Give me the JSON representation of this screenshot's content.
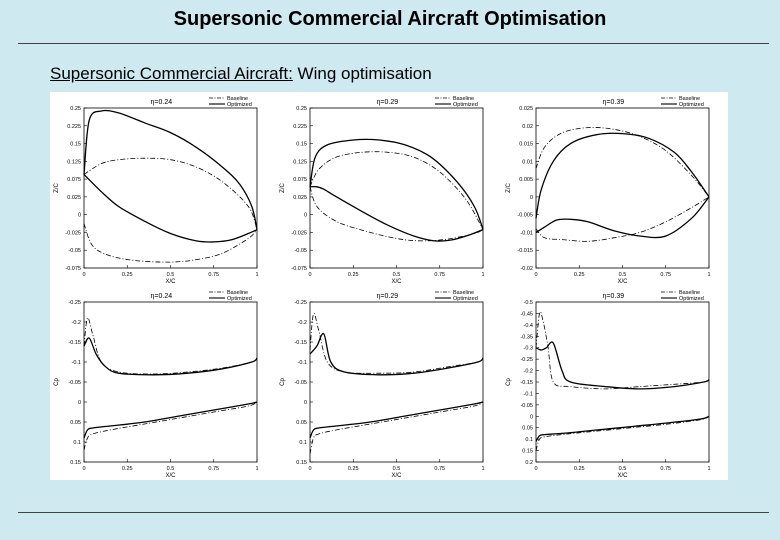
{
  "slide": {
    "title": "Supersonic Commercial Aircraft Optimisation",
    "subtitle_prefix": "Supersonic Commercial Aircraft:",
    "subtitle_suffix": " Wing optimisation"
  },
  "legend": {
    "baseline": "Baseline",
    "optimized": "Optimized"
  },
  "chart_data": [
    {
      "type": "line",
      "title": "η=0.24",
      "xlabel": "X/C",
      "ylabel": "Z/C",
      "xlim": [
        0,
        1
      ],
      "ylim": [
        -0.075,
        0.25
      ],
      "xticks": [
        "0",
        "0.25",
        "0.5",
        "0.75",
        "1"
      ],
      "yticks": [
        "0.25",
        "0.225",
        "0.15",
        "0.125",
        "0.075",
        "0.025",
        "0",
        "-0.025",
        "-0.05",
        "-0.075"
      ],
      "series": [
        {
          "name": "Baseline",
          "style": "dashdot",
          "x": [
            0,
            0.1,
            0.2,
            0.35,
            0.5,
            0.65,
            0.8,
            0.95,
            1
          ],
          "y": [
            0.115,
            0.137,
            0.145,
            0.148,
            0.145,
            0.13,
            0.1,
            0.05,
            0.003
          ]
        },
        {
          "name": "Baseline",
          "style": "dashdot",
          "x": [
            0,
            0.05,
            0.15,
            0.3,
            0.5,
            0.65,
            0.8,
            0.95,
            1
          ],
          "y": [
            0.015,
            -0.03,
            -0.05,
            -0.06,
            -0.063,
            -0.058,
            -0.045,
            -0.015,
            0.003
          ]
        },
        {
          "name": "Optimized",
          "style": "solid",
          "x": [
            0,
            0.03,
            0.1,
            0.2,
            0.35,
            0.5,
            0.65,
            0.8,
            0.9,
            0.97,
            1
          ],
          "y": [
            0.115,
            0.225,
            0.244,
            0.24,
            0.22,
            0.2,
            0.17,
            0.13,
            0.095,
            0.05,
            0.003
          ]
        },
        {
          "name": "Optimized",
          "style": "solid",
          "x": [
            0,
            0.1,
            0.2,
            0.35,
            0.5,
            0.65,
            0.75,
            0.85,
            0.95,
            1
          ],
          "y": [
            0.115,
            0.08,
            0.05,
            0.02,
            -0.005,
            -0.02,
            -0.022,
            -0.018,
            -0.005,
            0.003
          ]
        }
      ]
    },
    {
      "type": "line",
      "title": "η=0.29",
      "xlabel": "X/C",
      "ylabel": "Z/C",
      "xlim": [
        0,
        1
      ],
      "ylim": [
        -0.075,
        0.25
      ],
      "xticks": [
        "0",
        "0.25",
        "0.5",
        "0.75",
        "1"
      ],
      "yticks": [
        "0.25",
        "0.225",
        "0.15",
        "0.125",
        "0.075",
        "0.025",
        "0",
        "-0.025",
        "-0.05",
        "-0.075"
      ],
      "series": [
        {
          "name": "Baseline",
          "style": "dashdot",
          "x": [
            0,
            0.05,
            0.15,
            0.3,
            0.45,
            0.6,
            0.75,
            0.9,
            1
          ],
          "y": [
            0.09,
            0.125,
            0.15,
            0.16,
            0.16,
            0.15,
            0.12,
            0.065,
            0.003
          ]
        },
        {
          "name": "Baseline",
          "style": "dashdot",
          "x": [
            0,
            0.04,
            0.15,
            0.3,
            0.5,
            0.65,
            0.8,
            0.95,
            1
          ],
          "y": [
            0.09,
            0.05,
            0.02,
            0.002,
            -0.015,
            -0.02,
            -0.016,
            -0.005,
            0.003
          ]
        },
        {
          "name": "Optimized",
          "style": "solid",
          "x": [
            0,
            0.03,
            0.1,
            0.25,
            0.4,
            0.55,
            0.7,
            0.85,
            0.95,
            1
          ],
          "y": [
            0.09,
            0.15,
            0.175,
            0.185,
            0.185,
            0.175,
            0.15,
            0.1,
            0.05,
            0.003
          ]
        },
        {
          "name": "Optimized",
          "style": "solid",
          "x": [
            0,
            0.04,
            0.08,
            0.15,
            0.3,
            0.45,
            0.6,
            0.72,
            0.82,
            0.92,
            1
          ],
          "y": [
            0.09,
            0.09,
            0.085,
            0.07,
            0.04,
            0.012,
            -0.01,
            -0.02,
            -0.018,
            -0.008,
            0.003
          ]
        }
      ]
    },
    {
      "type": "line",
      "title": "η=0.39",
      "xlabel": "X/C",
      "ylabel": "Z/C",
      "xlim": [
        0,
        1
      ],
      "ylim": [
        -0.02,
        0.025
      ],
      "xticks": [
        "0",
        "0.25",
        "0.5",
        "0.75",
        "1"
      ],
      "yticks": [
        "0.025",
        "0.02",
        "0.015",
        "0.01",
        "0.005",
        "0",
        "-0.005",
        "-0.01",
        "-0.015",
        "-0.02"
      ],
      "series": [
        {
          "name": "Baseline",
          "style": "dashdot",
          "x": [
            0,
            0.05,
            0.15,
            0.3,
            0.45,
            0.6,
            0.75,
            0.9,
            1
          ],
          "y": [
            0.008,
            0.014,
            0.018,
            0.0195,
            0.019,
            0.017,
            0.013,
            0.006,
            0
          ]
        },
        {
          "name": "Baseline",
          "style": "dashdot",
          "x": [
            0,
            0.05,
            0.15,
            0.3,
            0.45,
            0.6,
            0.75,
            0.9,
            1
          ],
          "y": [
            -0.009,
            -0.0115,
            -0.012,
            -0.0125,
            -0.0115,
            -0.01,
            -0.007,
            -0.003,
            0
          ]
        },
        {
          "name": "Optimized",
          "style": "solid",
          "x": [
            0,
            0.03,
            0.1,
            0.2,
            0.35,
            0.5,
            0.65,
            0.8,
            0.9,
            1
          ],
          "y": [
            -0.006,
            0.002,
            0.01,
            0.015,
            0.0175,
            0.0178,
            0.0165,
            0.0125,
            0.007,
            0
          ]
        },
        {
          "name": "Optimized",
          "style": "solid",
          "x": [
            0,
            0.05,
            0.12,
            0.2,
            0.3,
            0.45,
            0.6,
            0.75,
            0.9,
            1
          ],
          "y": [
            -0.01,
            -0.0085,
            -0.0065,
            -0.0063,
            -0.007,
            -0.0095,
            -0.011,
            -0.011,
            -0.006,
            0
          ]
        }
      ]
    },
    {
      "type": "line",
      "title": "η=0.24",
      "xlabel": "X/C",
      "ylabel": "Cp",
      "xlim": [
        0,
        1
      ],
      "ylim": [
        -0.25,
        0.15
      ],
      "invert_y": true,
      "xticks": [
        "0",
        "0.25",
        "0.5",
        "0.75",
        "1"
      ],
      "yticks": [
        "-0.25",
        "-0.2",
        "-0.15",
        "-0.1",
        "-0.05",
        "0",
        "0.05",
        "0.1",
        "0.15"
      ],
      "series": [
        {
          "name": "Baseline",
          "style": "dashdot",
          "x": [
            0,
            0.02,
            0.05,
            0.1,
            0.2,
            0.4,
            0.6,
            0.8,
            0.97,
            1
          ],
          "y": [
            -0.14,
            -0.21,
            -0.17,
            -0.1,
            -0.075,
            -0.07,
            -0.075,
            -0.085,
            -0.1,
            -0.11
          ]
        },
        {
          "name": "Baseline",
          "style": "dashdot",
          "x": [
            0,
            0.02,
            0.05,
            0.15,
            0.35,
            0.55,
            0.75,
            0.95,
            1
          ],
          "y": [
            0.12,
            0.09,
            0.08,
            0.07,
            0.055,
            0.04,
            0.025,
            0.01,
            0.0
          ]
        },
        {
          "name": "Optimized",
          "style": "solid",
          "x": [
            0,
            0.03,
            0.07,
            0.12,
            0.2,
            0.4,
            0.6,
            0.8,
            0.97,
            1
          ],
          "y": [
            -0.14,
            -0.16,
            -0.12,
            -0.09,
            -0.072,
            -0.068,
            -0.072,
            -0.083,
            -0.1,
            -0.11
          ]
        },
        {
          "name": "Optimized",
          "style": "solid",
          "x": [
            0,
            0.02,
            0.05,
            0.15,
            0.35,
            0.55,
            0.75,
            0.95,
            1
          ],
          "y": [
            0.09,
            0.07,
            0.065,
            0.06,
            0.05,
            0.035,
            0.02,
            0.005,
            0.0
          ]
        }
      ]
    },
    {
      "type": "line",
      "title": "η=0.29",
      "xlabel": "X/C",
      "ylabel": "Cp",
      "xlim": [
        0,
        1
      ],
      "ylim": [
        -0.25,
        0.15
      ],
      "invert_y": true,
      "xticks": [
        "0",
        "0.25",
        "0.5",
        "0.75",
        "1"
      ],
      "yticks": [
        "-0.25",
        "-0.2",
        "-0.15",
        "-0.1",
        "-0.05",
        "0",
        "0.05",
        "0.1",
        "0.15"
      ],
      "series": [
        {
          "name": "Baseline",
          "style": "dashdot",
          "x": [
            0,
            0.02,
            0.05,
            0.1,
            0.2,
            0.4,
            0.6,
            0.8,
            0.97,
            1
          ],
          "y": [
            -0.13,
            -0.22,
            -0.18,
            -0.1,
            -0.075,
            -0.072,
            -0.075,
            -0.088,
            -0.1,
            -0.11
          ]
        },
        {
          "name": "Baseline",
          "style": "dashdot",
          "x": [
            0,
            0.02,
            0.05,
            0.15,
            0.35,
            0.55,
            0.75,
            0.95,
            1
          ],
          "y": [
            0.13,
            0.09,
            0.08,
            0.07,
            0.055,
            0.04,
            0.025,
            0.01,
            0.0
          ]
        },
        {
          "name": "Optimized",
          "style": "solid",
          "x": [
            0,
            0.04,
            0.08,
            0.12,
            0.2,
            0.4,
            0.6,
            0.8,
            0.97,
            1
          ],
          "y": [
            -0.12,
            -0.14,
            -0.17,
            -0.1,
            -0.075,
            -0.068,
            -0.072,
            -0.085,
            -0.1,
            -0.11
          ]
        },
        {
          "name": "Optimized",
          "style": "solid",
          "x": [
            0,
            0.02,
            0.05,
            0.15,
            0.35,
            0.55,
            0.75,
            0.95,
            1
          ],
          "y": [
            0.09,
            0.07,
            0.065,
            0.06,
            0.05,
            0.035,
            0.02,
            0.005,
            0.0
          ]
        }
      ]
    },
    {
      "type": "line",
      "title": "η=0.39",
      "xlabel": "X/C",
      "ylabel": "Cp",
      "xlim": [
        0,
        1
      ],
      "ylim": [
        -0.5,
        0.2
      ],
      "invert_y": true,
      "xticks": [
        "0",
        "0.25",
        "0.5",
        "0.75",
        "1"
      ],
      "yticks": [
        "-0.5",
        "-0.45",
        "-0.4",
        "-0.35",
        "-0.3",
        "-0.25",
        "-0.2",
        "-0.15",
        "-0.1",
        "-0.05",
        "0",
        "0.05",
        "0.1",
        "0.15",
        "0.2"
      ],
      "series": [
        {
          "name": "Baseline",
          "style": "dashdot",
          "x": [
            0,
            0.02,
            0.04,
            0.07,
            0.1,
            0.2,
            0.4,
            0.6,
            0.8,
            0.97,
            1
          ],
          "y": [
            -0.3,
            -0.45,
            -0.42,
            -0.3,
            -0.15,
            -0.13,
            -0.12,
            -0.13,
            -0.14,
            -0.15,
            -0.16
          ]
        },
        {
          "name": "Baseline",
          "style": "dashdot",
          "x": [
            0,
            0.02,
            0.05,
            0.15,
            0.35,
            0.55,
            0.75,
            0.95,
            1
          ],
          "y": [
            0.15,
            0.1,
            0.09,
            0.08,
            0.065,
            0.05,
            0.035,
            0.015,
            0.0
          ]
        },
        {
          "name": "Optimized",
          "style": "solid",
          "x": [
            0,
            0.03,
            0.06,
            0.1,
            0.15,
            0.2,
            0.4,
            0.6,
            0.8,
            0.97,
            1
          ],
          "y": [
            -0.3,
            -0.29,
            -0.3,
            -0.32,
            -0.2,
            -0.15,
            -0.13,
            -0.12,
            -0.13,
            -0.15,
            -0.16
          ]
        },
        {
          "name": "Optimized",
          "style": "solid",
          "x": [
            0,
            0.02,
            0.05,
            0.15,
            0.35,
            0.55,
            0.75,
            0.95,
            1
          ],
          "y": [
            0.11,
            0.085,
            0.08,
            0.075,
            0.06,
            0.045,
            0.03,
            0.012,
            0.0
          ]
        }
      ]
    }
  ]
}
